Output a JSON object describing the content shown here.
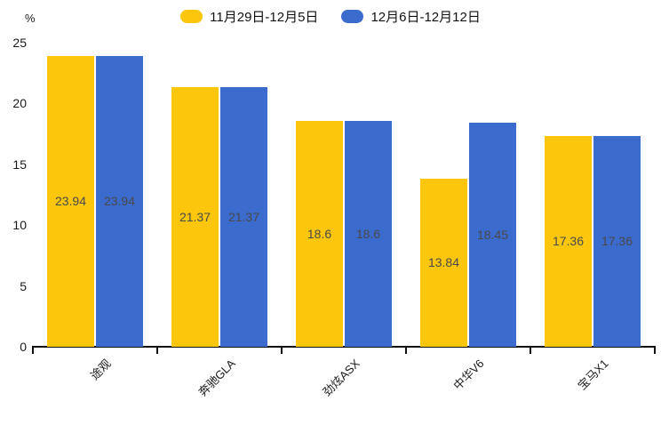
{
  "chart_data": {
    "type": "bar",
    "title": "",
    "ylabel": "%",
    "xlabel": "",
    "categories": [
      "途观",
      "奔驰GLA",
      "劲炫ASX",
      "中华V6",
      "宝马X1"
    ],
    "series": [
      {
        "name": "11月29日-12月5日",
        "color": "#FCC60D",
        "values": [
          23.94,
          21.37,
          18.6,
          13.84,
          17.36
        ],
        "labels": [
          "23.94",
          "21.37",
          "18.6",
          "13.84",
          "17.36"
        ]
      },
      {
        "name": "12月6日-12月12日",
        "color": "#3A6BCD",
        "values": [
          23.94,
          21.37,
          18.6,
          18.45,
          17.36
        ],
        "labels": [
          "23.94",
          "21.37",
          "18.6",
          "18.45",
          "17.36"
        ]
      }
    ],
    "ylim": [
      0,
      25
    ],
    "yticks": [
      0,
      5,
      10,
      15,
      20,
      25
    ],
    "grid": false,
    "legend_position": "top",
    "x_label_rotation_deg": -45,
    "axis_color": "#111111",
    "value_label_color": "#4a4a4a",
    "background_color": "#ffffff"
  }
}
